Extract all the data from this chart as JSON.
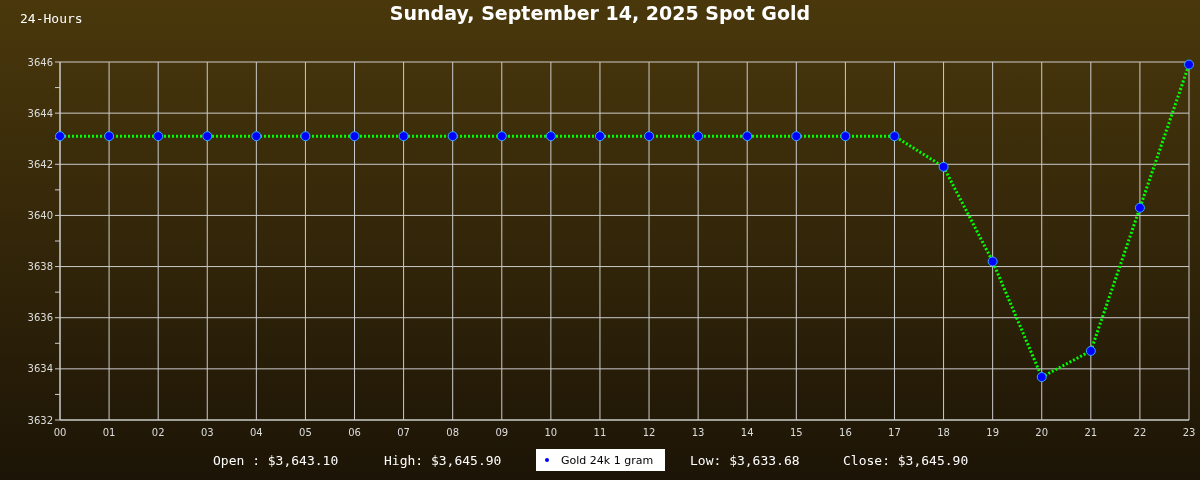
{
  "chart_data": {
    "type": "line",
    "title": "Sunday, September 14, 2025 Spot Gold",
    "subtitle": "24-Hours",
    "categories": [
      "00",
      "01",
      "02",
      "03",
      "04",
      "05",
      "06",
      "07",
      "08",
      "09",
      "10",
      "11",
      "12",
      "13",
      "14",
      "15",
      "16",
      "17",
      "18",
      "19",
      "20",
      "21",
      "22",
      "23"
    ],
    "series": [
      {
        "name": "Gold 24k 1 gram",
        "color": "#00ff00",
        "values": [
          3643.1,
          3643.1,
          3643.1,
          3643.1,
          3643.1,
          3643.1,
          3643.1,
          3643.1,
          3643.1,
          3643.1,
          3643.1,
          3643.1,
          3643.1,
          3643.1,
          3643.1,
          3643.1,
          3643.1,
          3643.1,
          3641.9,
          3638.2,
          3633.68,
          3634.7,
          3640.3,
          3645.9
        ]
      }
    ],
    "ylim": [
      3632,
      3646
    ],
    "yticks": [
      3632,
      {
        "value": 3633,
        "label": null
      },
      3634,
      {
        "value": 3635,
        "label": null
      },
      3636,
      {
        "value": 3637,
        "label": null
      },
      3638,
      {
        "value": 3639,
        "label": null
      },
      3640,
      {
        "value": 3641,
        "label": null
      },
      3642,
      {
        "value": 3643,
        "label": null
      },
      3644,
      {
        "value": 3645,
        "label": null
      },
      3646
    ],
    "grid": true,
    "legend": "bottom",
    "marker": "circle",
    "line_style": "dotted",
    "annotations": [
      "Open : $3,643.10",
      "High: $3,645.90",
      "Low: $3,633.68",
      "Close: $3,645.90"
    ]
  }
}
